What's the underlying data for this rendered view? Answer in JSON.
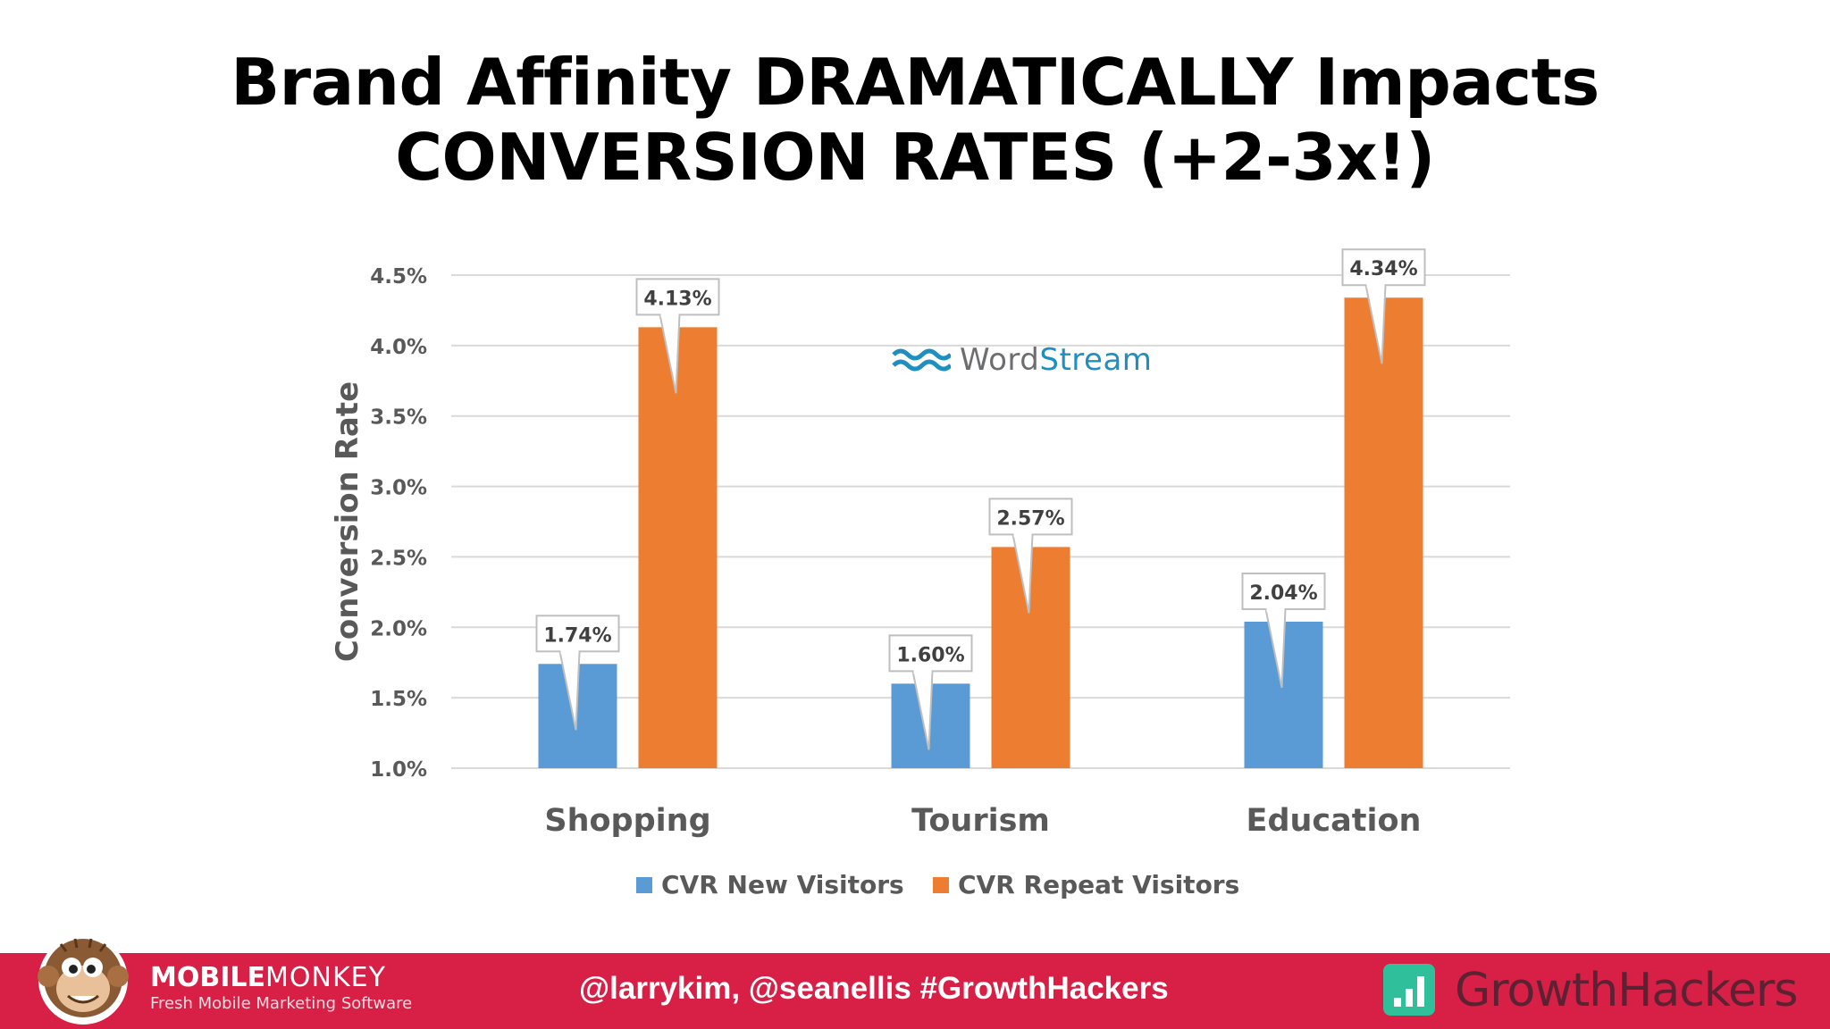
{
  "slide": {
    "title_line1": "Brand Affinity DRAMATICALLY Impacts",
    "title_line2": "CONVERSION RATES (+2-3x!)"
  },
  "watermark": {
    "word1": "Word",
    "word2": "Stream",
    "color_word1": "#6d6e70",
    "color_word2": "#1f8fbf",
    "icon": "wordstream-waves-icon"
  },
  "chart_data": {
    "type": "bar",
    "title": "",
    "xlabel": "",
    "ylabel": "Conversion Rate",
    "categories": [
      "Shopping",
      "Tourism",
      "Education"
    ],
    "series": [
      {
        "name": "CVR New Visitors",
        "color": "#5b9bd5",
        "values": [
          1.74,
          1.6,
          2.04
        ],
        "labels": [
          "1.74%",
          "1.60%",
          "2.04%"
        ]
      },
      {
        "name": "CVR Repeat Visitors",
        "color": "#ed7d31",
        "values": [
          4.13,
          2.57,
          4.34
        ],
        "labels": [
          "4.13%",
          "2.57%",
          "4.34%"
        ]
      }
    ],
    "ylim": [
      1.0,
      4.5
    ],
    "yticks": [
      1.0,
      1.5,
      2.0,
      2.5,
      3.0,
      3.5,
      4.0,
      4.5
    ],
    "ytick_labels": [
      "1.0%",
      "1.5%",
      "2.0%",
      "2.5%",
      "3.0%",
      "3.5%",
      "4.0%",
      "4.5%"
    ],
    "grid": true,
    "legend_position": "bottom"
  },
  "footer": {
    "background": "#d81f45",
    "handles": "@larrykim, @seanellis  #GrowthHackers",
    "mobilemonkey_bold": "MOBILE",
    "mobilemonkey_light": "MONKEY",
    "mobilemonkey_tagline": "Fresh Mobile Marketing Software",
    "mobilemonkey_icon": "monkey-mascot-icon",
    "growthhackers_name": "GrowthHackers",
    "growthhackers_icon": "growthhackers-bars-icon"
  }
}
